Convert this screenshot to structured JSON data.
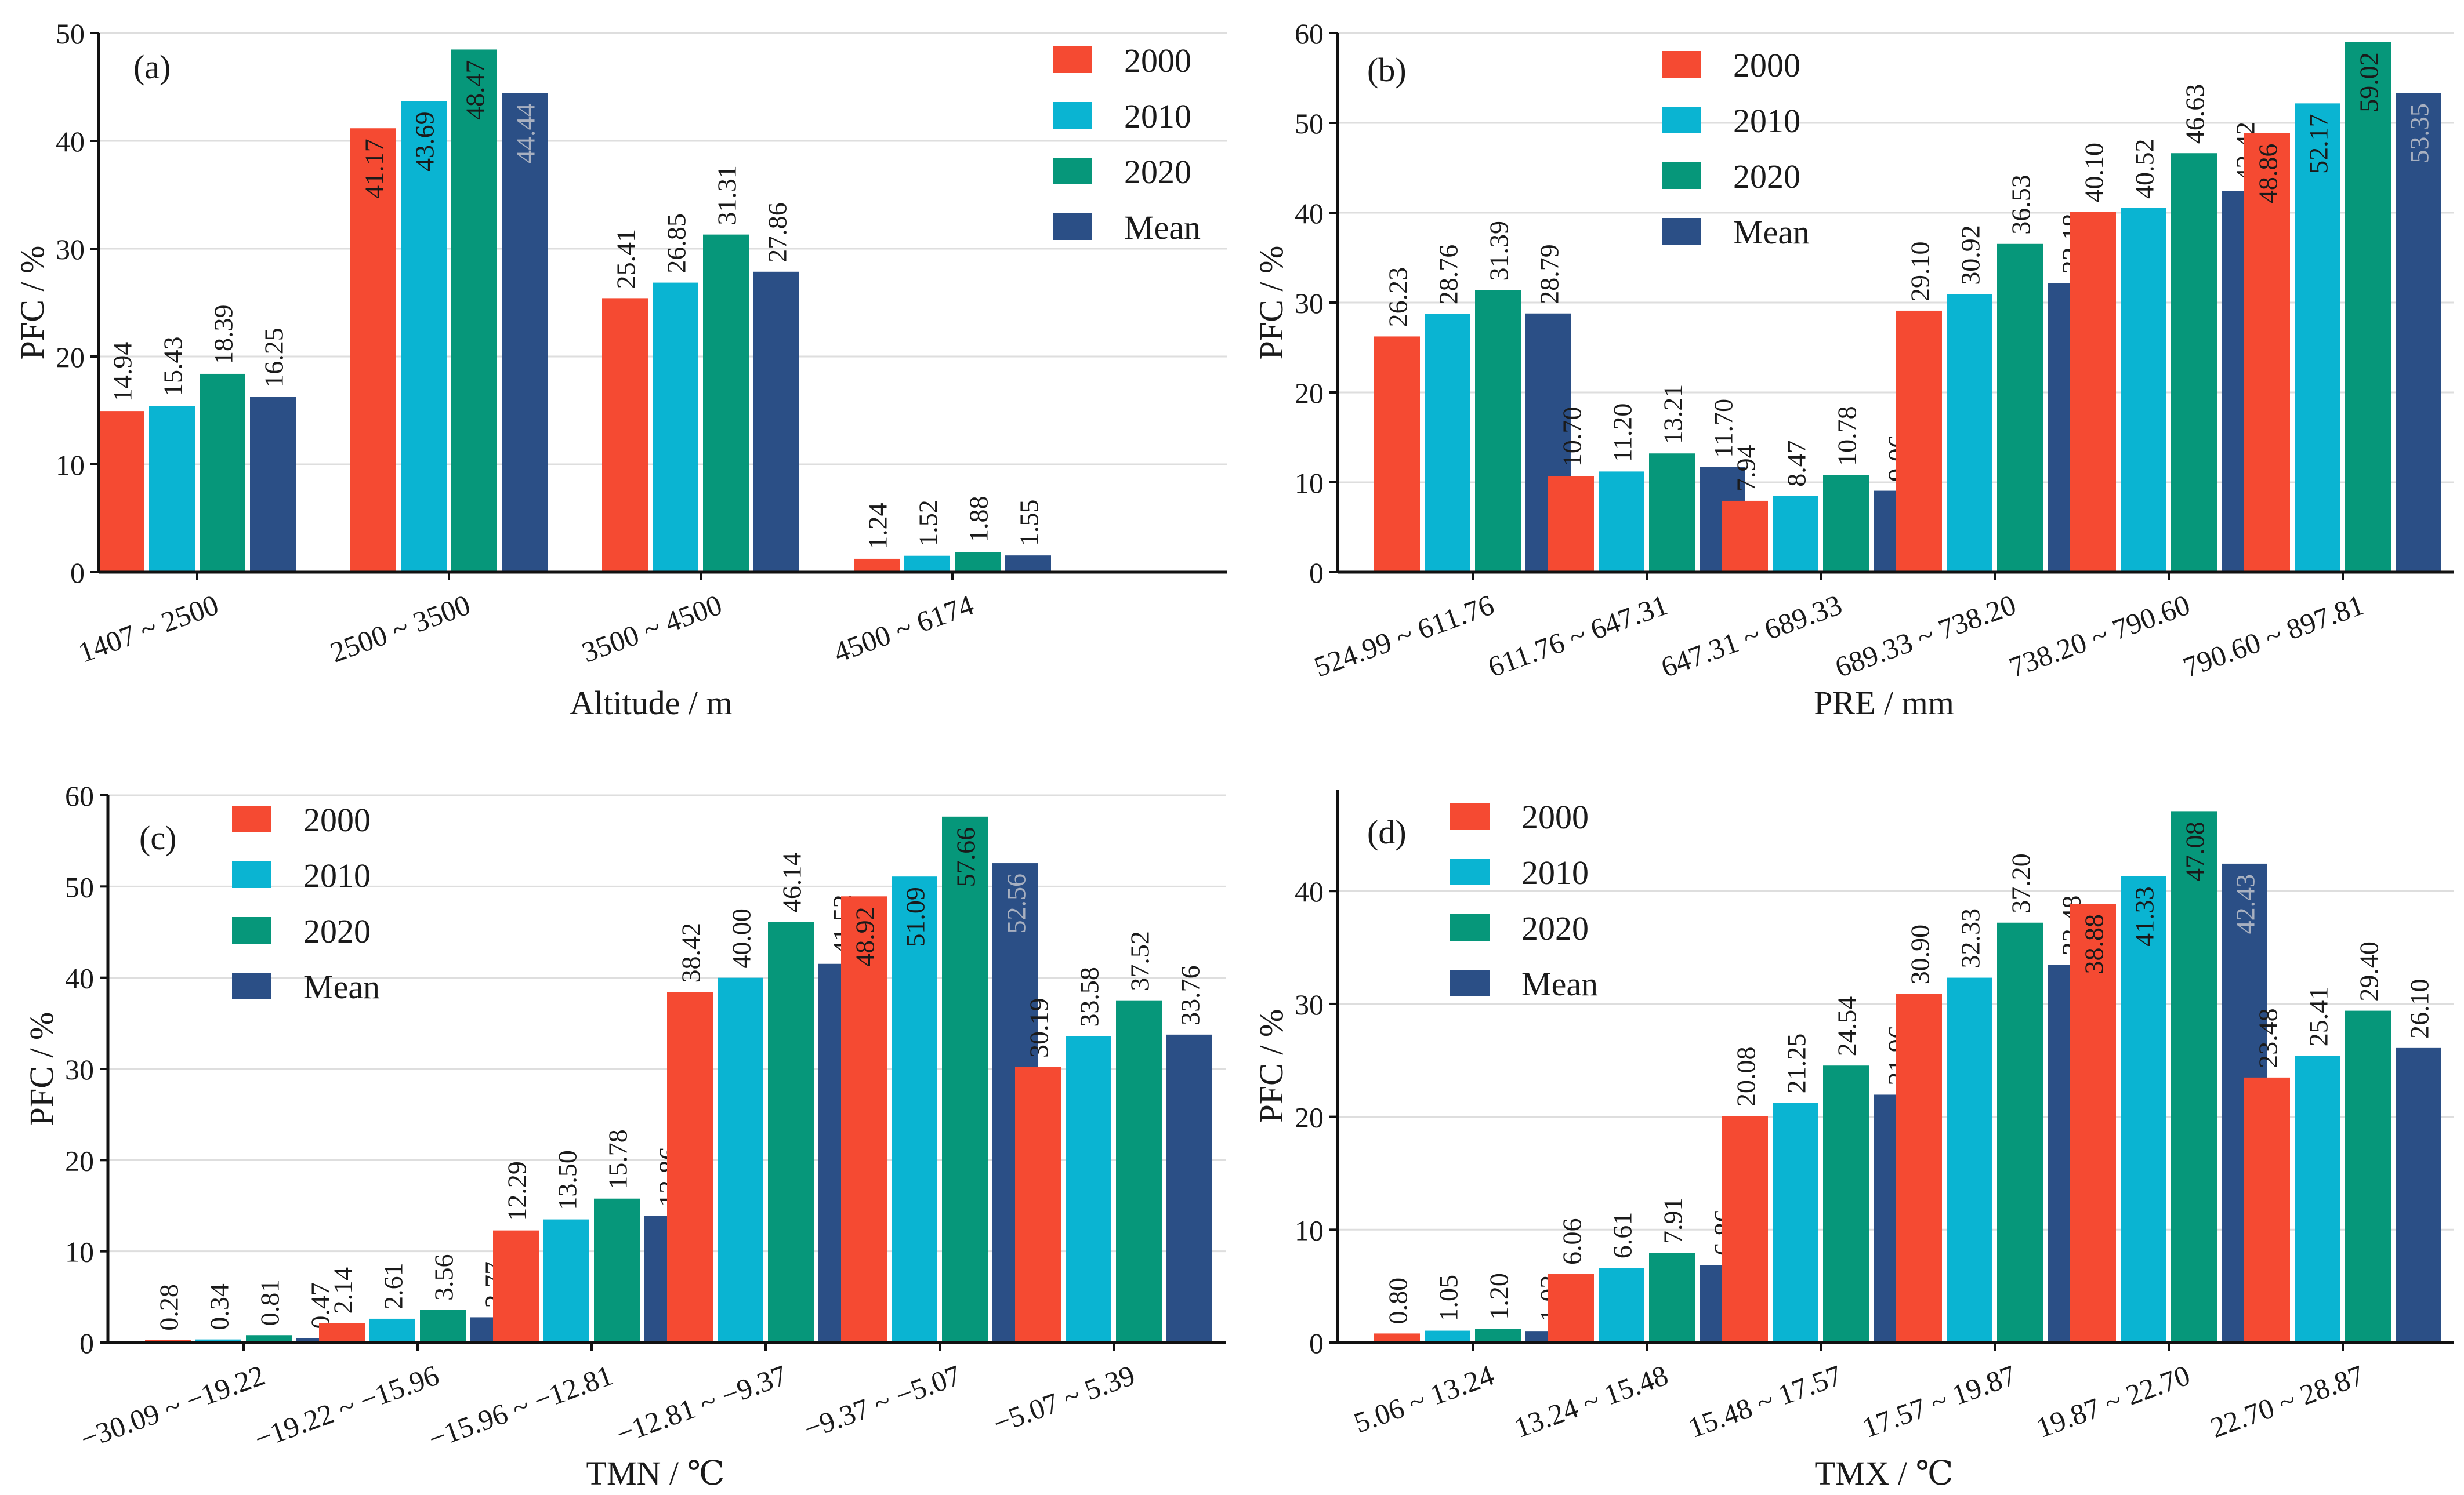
{
  "legend": {
    "labels": [
      "2000",
      "2010",
      "2020",
      "Mean"
    ],
    "colors": [
      "#f54a32",
      "#0ab4d2",
      "#06977a",
      "#2b4f86"
    ]
  },
  "label_colors": {
    "inside_dark": "#1a1a1a",
    "inside_light": "#a8b0c0"
  },
  "chart_data": [
    {
      "panel": "(a)",
      "type": "bar",
      "xlabel": "Altitude / m",
      "ylabel": "PFC / %",
      "ylim": [
        0,
        50
      ],
      "yticks": [
        0,
        10,
        20,
        30,
        40,
        50
      ],
      "grid": true,
      "legend_position": "top-right",
      "categories": [
        "1407 ~ 2500",
        "2500 ~ 3500",
        "3500 ~ 4500",
        "4500 ~ 6174"
      ],
      "series": [
        {
          "name": "2000",
          "values": [
            14.94,
            41.17,
            25.41,
            1.24
          ],
          "labels": [
            "14.94",
            "41.17",
            "25.41",
            "1.24"
          ],
          "inside": [
            false,
            true,
            false,
            false
          ]
        },
        {
          "name": "2010",
          "values": [
            15.43,
            43.69,
            26.85,
            1.52
          ],
          "labels": [
            "15.43",
            "43.69",
            "26.85",
            "1.52"
          ],
          "inside": [
            false,
            true,
            false,
            false
          ]
        },
        {
          "name": "2020",
          "values": [
            18.39,
            48.47,
            31.31,
            1.88
          ],
          "labels": [
            "18.39",
            "48.47",
            "31.31",
            "1.88"
          ],
          "inside": [
            false,
            true,
            false,
            false
          ]
        },
        {
          "name": "Mean",
          "values": [
            16.25,
            44.44,
            27.86,
            1.55
          ],
          "labels": [
            "16.25",
            "44.44",
            "27.86",
            "1.55"
          ],
          "inside": [
            false,
            true,
            false,
            false
          ]
        }
      ]
    },
    {
      "panel": "(b)",
      "type": "bar",
      "xlabel": "PRE / mm",
      "ylabel": "PFC / %",
      "ylim": [
        0,
        60
      ],
      "yticks": [
        0,
        10,
        20,
        30,
        40,
        50,
        60
      ],
      "grid": true,
      "legend_position": "top-center",
      "categories": [
        "524.99 ~ 611.76",
        "611.76 ~ 647.31",
        "647.31 ~ 689.33",
        "689.33 ~ 738.20",
        "738.20 ~ 790.60",
        "790.60 ~ 897.81"
      ],
      "series": [
        {
          "name": "2000",
          "values": [
            26.23,
            10.7,
            7.94,
            29.1,
            40.1,
            48.86
          ],
          "labels": [
            "26.23",
            "10.70",
            "7.94",
            "29.10",
            "40.10",
            "48.86"
          ],
          "inside": [
            false,
            false,
            false,
            false,
            false,
            true
          ]
        },
        {
          "name": "2010",
          "values": [
            28.76,
            11.2,
            8.47,
            30.92,
            40.52,
            52.17
          ],
          "labels": [
            "28.76",
            "11.20",
            "8.47",
            "30.92",
            "40.52",
            "52.17"
          ],
          "inside": [
            false,
            false,
            false,
            false,
            false,
            true
          ]
        },
        {
          "name": "2020",
          "values": [
            31.39,
            13.21,
            10.78,
            36.53,
            46.63,
            59.02
          ],
          "labels": [
            "31.39",
            "13.21",
            "10.78",
            "36.53",
            "46.63",
            "59.02"
          ],
          "inside": [
            false,
            false,
            false,
            false,
            false,
            true
          ]
        },
        {
          "name": "Mean",
          "values": [
            28.79,
            11.7,
            9.06,
            32.18,
            42.42,
            53.35
          ],
          "labels": [
            "28.79",
            "11.70",
            "9.06",
            "32.18",
            "42.42",
            "53.35"
          ],
          "inside": [
            false,
            false,
            false,
            false,
            false,
            true
          ]
        }
      ]
    },
    {
      "panel": "(c)",
      "type": "bar",
      "xlabel": "TMN / ℃",
      "ylabel": "PFC / %",
      "ylim": [
        0,
        60
      ],
      "yticks": [
        0,
        10,
        20,
        30,
        40,
        50,
        60
      ],
      "grid": true,
      "legend_position": "top-left",
      "categories": [
        "−30.09 ~ −19.22",
        "−19.22 ~ −15.96",
        "−15.96 ~ −12.81",
        "−12.81 ~ −9.37",
        "−9.37 ~ −5.07",
        "−5.07 ~ 5.39"
      ],
      "series": [
        {
          "name": "2000",
          "values": [
            0.28,
            2.14,
            12.29,
            38.42,
            48.92,
            30.19
          ],
          "labels": [
            "0.28",
            "2.14",
            "12.29",
            "38.42",
            "48.92",
            "30.19"
          ],
          "inside": [
            false,
            false,
            false,
            false,
            true,
            false
          ]
        },
        {
          "name": "2010",
          "values": [
            0.34,
            2.61,
            13.5,
            40.0,
            51.09,
            33.58
          ],
          "labels": [
            "0.34",
            "2.61",
            "13.50",
            "40.00",
            "51.09",
            "33.58"
          ],
          "inside": [
            false,
            false,
            false,
            false,
            true,
            false
          ]
        },
        {
          "name": "2020",
          "values": [
            0.81,
            3.56,
            15.78,
            46.14,
            57.66,
            37.52
          ],
          "labels": [
            "0.81",
            "3.56",
            "15.78",
            "46.14",
            "57.66",
            "37.52"
          ],
          "inside": [
            false,
            false,
            false,
            false,
            true,
            false
          ]
        },
        {
          "name": "Mean",
          "values": [
            0.47,
            2.77,
            13.86,
            41.52,
            52.56,
            33.76
          ],
          "labels": [
            "0.47",
            "2.77",
            "13.86",
            "41.52",
            "52.56",
            "33.76"
          ],
          "inside": [
            false,
            false,
            false,
            false,
            true,
            false
          ]
        }
      ]
    },
    {
      "panel": "(d)",
      "type": "bar",
      "xlabel": "TMX / ℃",
      "ylabel": "PFC / %",
      "ylim": [
        0,
        49
      ],
      "yticks": [
        0,
        10,
        20,
        30,
        40
      ],
      "grid": true,
      "legend_position": "top-left",
      "categories": [
        "5.06 ~ 13.24",
        "13.24 ~ 15.48",
        "15.48 ~ 17.57",
        "17.57 ~ 19.87",
        "19.87 ~ 22.70",
        "22.70 ~ 28.87"
      ],
      "series": [
        {
          "name": "2000",
          "values": [
            0.8,
            6.06,
            20.08,
            30.9,
            38.88,
            23.48
          ],
          "labels": [
            "0.80",
            "6.06",
            "20.08",
            "30.90",
            "38.88",
            "23.48"
          ],
          "inside": [
            false,
            false,
            false,
            false,
            true,
            false
          ]
        },
        {
          "name": "2010",
          "values": [
            1.05,
            6.61,
            21.25,
            32.33,
            41.33,
            25.41
          ],
          "labels": [
            "1.05",
            "6.61",
            "21.25",
            "32.33",
            "41.33",
            "25.41"
          ],
          "inside": [
            false,
            false,
            false,
            false,
            true,
            false
          ]
        },
        {
          "name": "2020",
          "values": [
            1.2,
            7.91,
            24.54,
            37.2,
            47.08,
            29.4
          ],
          "labels": [
            "1.20",
            "7.91",
            "24.54",
            "37.20",
            "47.08",
            "29.40"
          ],
          "inside": [
            false,
            false,
            false,
            false,
            true,
            false
          ]
        },
        {
          "name": "Mean",
          "values": [
            1.02,
            6.86,
            21.96,
            33.48,
            42.43,
            26.1
          ],
          "labels": [
            "1.02",
            "6.86",
            "21.96",
            "33.48",
            "42.43",
            "26.10"
          ],
          "inside": [
            false,
            false,
            false,
            false,
            true,
            false
          ]
        }
      ]
    }
  ]
}
